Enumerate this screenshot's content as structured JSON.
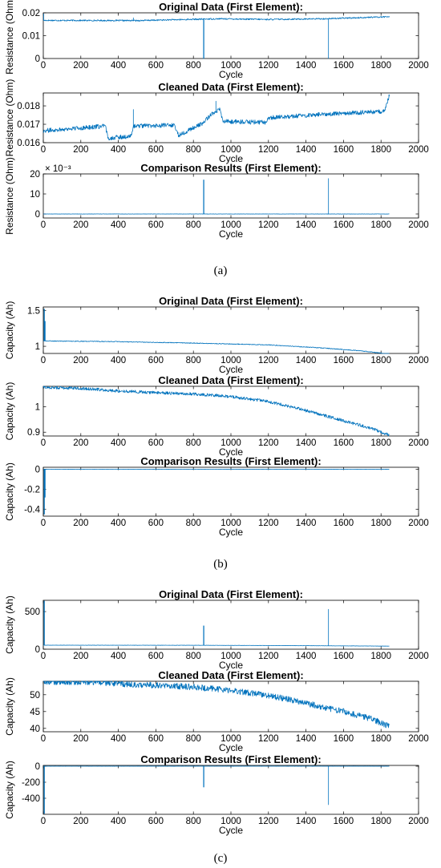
{
  "colors": {
    "line": "#0072bd",
    "axis": "#000000",
    "background": "#ffffff"
  },
  "panel_labels": [
    "(a)",
    "(b)",
    "(c)"
  ],
  "chart_data": [
    {
      "type": "line",
      "panel": "a",
      "title": "Original Data (First Element):",
      "xlabel": "Cycle",
      "ylabel": "Resistance (Ohm)",
      "xlim": [
        0,
        2000
      ],
      "ylim": [
        0,
        0.02
      ],
      "xticks": [
        "0",
        "200",
        "400",
        "600",
        "800",
        "1000",
        "1200",
        "1400",
        "1600",
        "1800",
        "2000"
      ],
      "yticks": [
        {
          "v": 0,
          "l": "0"
        },
        {
          "v": 0.01,
          "l": "0.01"
        },
        {
          "v": 0.02,
          "l": "0.02"
        }
      ],
      "baseline": [
        [
          0,
          0.0167
        ],
        [
          500,
          0.0166
        ],
        [
          940,
          0.0174
        ],
        [
          1200,
          0.0171
        ],
        [
          1500,
          0.0174
        ],
        [
          1845,
          0.0183
        ]
      ],
      "noise": 0.0003,
      "spikes": [
        {
          "x": 2,
          "y": 0.0195
        },
        {
          "x": 480,
          "y": 0.0178
        },
        {
          "x": 855,
          "y": 0
        },
        {
          "x": 1520,
          "y": 0
        }
      ],
      "x_end": 1845
    },
    {
      "type": "line",
      "panel": "a",
      "title": "Cleaned Data (First Element):",
      "xlabel": "Cycle",
      "ylabel": "Resistance (Ohm)",
      "xlim": [
        0,
        2000
      ],
      "ylim": [
        0.016,
        0.0187
      ],
      "xticks": [
        "0",
        "200",
        "400",
        "600",
        "800",
        "1000",
        "1200",
        "1400",
        "1600",
        "1800",
        "2000"
      ],
      "yticks": [
        {
          "v": 0.016,
          "l": "0.016"
        },
        {
          "v": 0.017,
          "l": "0.017"
        },
        {
          "v": 0.018,
          "l": "0.018"
        }
      ],
      "baseline": [
        [
          0,
          0.01665
        ],
        [
          200,
          0.0168
        ],
        [
          330,
          0.0169
        ],
        [
          345,
          0.01625
        ],
        [
          470,
          0.01635
        ],
        [
          480,
          0.0169
        ],
        [
          700,
          0.01695
        ],
        [
          720,
          0.0164
        ],
        [
          850,
          0.01705
        ],
        [
          900,
          0.0176
        ],
        [
          940,
          0.0178
        ],
        [
          960,
          0.01715
        ],
        [
          1190,
          0.0171
        ],
        [
          1200,
          0.01735
        ],
        [
          1500,
          0.01755
        ],
        [
          1820,
          0.0177
        ],
        [
          1845,
          0.0186
        ]
      ],
      "noise": 0.00012,
      "spikes": [
        {
          "x": 480,
          "y": 0.0178
        },
        {
          "x": 920,
          "y": 0.01825
        },
        {
          "x": 1843,
          "y": 0.0186
        }
      ],
      "x_end": 1845
    },
    {
      "type": "line",
      "panel": "a",
      "title": "Comparison Results (First Element):",
      "xlabel": "Cycle",
      "ylabel": "Resistance (Ohm)",
      "axis_multiplier": "× 10⁻³",
      "xlim": [
        0,
        2000
      ],
      "ylim": [
        -2,
        20
      ],
      "xticks": [
        "0",
        "200",
        "400",
        "600",
        "800",
        "1000",
        "1200",
        "1400",
        "1600",
        "1800",
        "2000"
      ],
      "yticks": [
        {
          "v": 0,
          "l": "0"
        },
        {
          "v": 10,
          "l": "10"
        },
        {
          "v": 20,
          "l": "20"
        }
      ],
      "baseline": [
        [
          0,
          0
        ],
        [
          1845,
          0
        ]
      ],
      "noise": 0.05,
      "spikes": [
        {
          "x": 855,
          "y": 17
        },
        {
          "x": 1520,
          "y": 17.7
        }
      ],
      "x_end": 1845
    },
    {
      "type": "line",
      "panel": "b",
      "title": "Original Data (First Element):",
      "xlabel": "Cycle",
      "ylabel": "Capacity (Ah)",
      "xlim": [
        0,
        2000
      ],
      "ylim": [
        0.9,
        1.55
      ],
      "xticks": [
        "0",
        "200",
        "400",
        "600",
        "800",
        "1000",
        "1200",
        "1400",
        "1600",
        "1800",
        "2000"
      ],
      "yticks": [
        {
          "v": 1,
          "l": "1"
        },
        {
          "v": 1.5,
          "l": "1.5"
        }
      ],
      "baseline": [
        [
          0,
          1.075
        ],
        [
          400,
          1.065
        ],
        [
          800,
          1.045
        ],
        [
          1200,
          1.02
        ],
        [
          1500,
          0.975
        ],
        [
          1700,
          0.935
        ],
        [
          1845,
          0.89
        ]
      ],
      "noise": 0.005,
      "spikes": [
        {
          "x": 5,
          "y": 1.52
        },
        {
          "x": 9,
          "y": 1.35
        }
      ],
      "x_end": 1845
    },
    {
      "type": "line",
      "panel": "b",
      "title": "Cleaned Data (First Element):",
      "xlabel": "Cycle",
      "ylabel": "Capacity (Ah)",
      "xlim": [
        0,
        2000
      ],
      "ylim": [
        0.885,
        1.08
      ],
      "xticks": [
        "0",
        "200",
        "400",
        "600",
        "800",
        "1000",
        "1200",
        "1400",
        "1600",
        "1800",
        "2000"
      ],
      "yticks": [
        {
          "v": 0.9,
          "l": "0.9"
        },
        {
          "v": 1,
          "l": "1"
        }
      ],
      "baseline": [
        [
          0,
          1.076
        ],
        [
          200,
          1.072
        ],
        [
          400,
          1.062
        ],
        [
          600,
          1.055
        ],
        [
          800,
          1.05
        ],
        [
          1000,
          1.04
        ],
        [
          1200,
          1.02
        ],
        [
          1400,
          0.985
        ],
        [
          1600,
          0.945
        ],
        [
          1750,
          0.915
        ],
        [
          1845,
          0.888
        ]
      ],
      "noise": 0.006,
      "spikes": [],
      "x_end": 1845
    },
    {
      "type": "line",
      "panel": "b",
      "title": "Comparison Results (First Element):",
      "xlabel": "Cycle",
      "ylabel": "Capacity (Ah)",
      "xlim": [
        0,
        2000
      ],
      "ylim": [
        -0.47,
        0.02
      ],
      "xticks": [
        "0",
        "200",
        "400",
        "600",
        "800",
        "1000",
        "1200",
        "1400",
        "1600",
        "1800",
        "2000"
      ],
      "yticks": [
        {
          "v": -0.4,
          "l": "-0.4"
        },
        {
          "v": -0.2,
          "l": "-0.2"
        },
        {
          "v": 0,
          "l": "0"
        }
      ],
      "baseline": [
        [
          0,
          0
        ],
        [
          1845,
          0
        ]
      ],
      "noise": 0.001,
      "spikes": [
        {
          "x": 5,
          "y": -0.45
        },
        {
          "x": 9,
          "y": -0.28
        }
      ],
      "x_end": 1845
    },
    {
      "type": "line",
      "panel": "c",
      "title": "Original Data (First Element):",
      "xlabel": "Cycle",
      "ylabel": "Capacity (Ah)",
      "xlim": [
        0,
        2000
      ],
      "ylim": [
        0,
        650
      ],
      "xticks": [
        "0",
        "200",
        "400",
        "600",
        "800",
        "1000",
        "1200",
        "1400",
        "1600",
        "1800",
        "2000"
      ],
      "yticks": [
        {
          "v": 0,
          "l": "0"
        },
        {
          "v": 500,
          "l": "500"
        }
      ],
      "baseline": [
        [
          0,
          53
        ],
        [
          800,
          52
        ],
        [
          1200,
          49
        ],
        [
          1845,
          41
        ]
      ],
      "noise": 1.5,
      "spikes": [
        {
          "x": 5,
          "y": 640
        },
        {
          "x": 855,
          "y": 310
        },
        {
          "x": 1520,
          "y": 530
        }
      ],
      "x_end": 1845
    },
    {
      "type": "line",
      "panel": "c",
      "title": "Cleaned Data (First Element):",
      "xlabel": "Cycle",
      "ylabel": "Capacity (Ah)",
      "xlim": [
        0,
        2000
      ],
      "ylim": [
        39,
        54
      ],
      "xticks": [
        "0",
        "200",
        "400",
        "600",
        "800",
        "1000",
        "1200",
        "1400",
        "1600",
        "1800",
        "2000"
      ],
      "yticks": [
        {
          "v": 40,
          "l": "40"
        },
        {
          "v": 45,
          "l": "45"
        },
        {
          "v": 50,
          "l": "50"
        }
      ],
      "baseline": [
        [
          0,
          53.8
        ],
        [
          300,
          53.6
        ],
        [
          400,
          53.2
        ],
        [
          600,
          52.8
        ],
        [
          800,
          52.3
        ],
        [
          1000,
          51.3
        ],
        [
          1200,
          49.8
        ],
        [
          1400,
          47.5
        ],
        [
          1600,
          45.0
        ],
        [
          1750,
          42.8
        ],
        [
          1845,
          40.6
        ]
      ],
      "noise": 0.9,
      "spikes": [],
      "x_end": 1845
    },
    {
      "type": "line",
      "panel": "c",
      "title": "Comparison Results (First Element):",
      "xlabel": "Cycle",
      "ylabel": "Capacity (Ah)",
      "xlim": [
        0,
        2000
      ],
      "ylim": [
        -600,
        10
      ],
      "xticks": [
        "0",
        "200",
        "400",
        "600",
        "800",
        "1000",
        "1200",
        "1400",
        "1600",
        "1800",
        "2000"
      ],
      "yticks": [
        {
          "v": -400,
          "l": "-400"
        },
        {
          "v": -200,
          "l": "-200"
        },
        {
          "v": 0,
          "l": "0"
        }
      ],
      "baseline": [
        [
          0,
          0
        ],
        [
          1845,
          0
        ]
      ],
      "noise": 0.5,
      "spikes": [
        {
          "x": 5,
          "y": -590
        },
        {
          "x": 855,
          "y": -260
        },
        {
          "x": 1520,
          "y": -480
        }
      ],
      "x_end": 1845
    }
  ]
}
